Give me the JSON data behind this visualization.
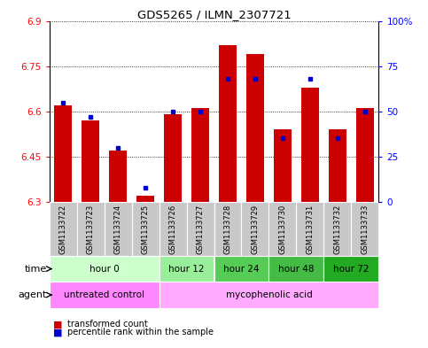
{
  "title": "GDS5265 / ILMN_2307721",
  "samples": [
    "GSM1133722",
    "GSM1133723",
    "GSM1133724",
    "GSM1133725",
    "GSM1133726",
    "GSM1133727",
    "GSM1133728",
    "GSM1133729",
    "GSM1133730",
    "GSM1133731",
    "GSM1133732",
    "GSM1133733"
  ],
  "red_values": [
    6.62,
    6.57,
    6.47,
    6.32,
    6.59,
    6.61,
    6.82,
    6.79,
    6.54,
    6.68,
    6.54,
    6.61
  ],
  "blue_values_pct": [
    55,
    47,
    30,
    8,
    50,
    50,
    68,
    68,
    35,
    68,
    35,
    50
  ],
  "ymin": 6.3,
  "ymax": 6.9,
  "yticks": [
    6.3,
    6.45,
    6.6,
    6.75,
    6.9
  ],
  "ytick_labels_left": [
    "6.3",
    "6.45",
    "6.6",
    "6.75",
    "6.9"
  ],
  "ytick_labels_right": [
    "0",
    "25",
    "50",
    "75",
    "100%"
  ],
  "bar_bottom": 6.3,
  "time_groups": [
    {
      "label": "hour 0",
      "start": 0,
      "end": 4,
      "color": "#ccffcc"
    },
    {
      "label": "hour 12",
      "start": 4,
      "end": 6,
      "color": "#99ee99"
    },
    {
      "label": "hour 24",
      "start": 6,
      "end": 8,
      "color": "#55cc55"
    },
    {
      "label": "hour 48",
      "start": 8,
      "end": 10,
      "color": "#44bb44"
    },
    {
      "label": "hour 72",
      "start": 10,
      "end": 12,
      "color": "#22aa22"
    }
  ],
  "agent_groups": [
    {
      "label": "untreated control",
      "start": 0,
      "end": 4,
      "color": "#ff88ff"
    },
    {
      "label": "mycophenolic acid",
      "start": 4,
      "end": 12,
      "color": "#ffaaff"
    }
  ],
  "red_color": "#cc0000",
  "blue_color": "#0000cc",
  "bar_width": 0.65,
  "chart_bg": "#ffffff",
  "sample_bg": "#c8c8c8"
}
